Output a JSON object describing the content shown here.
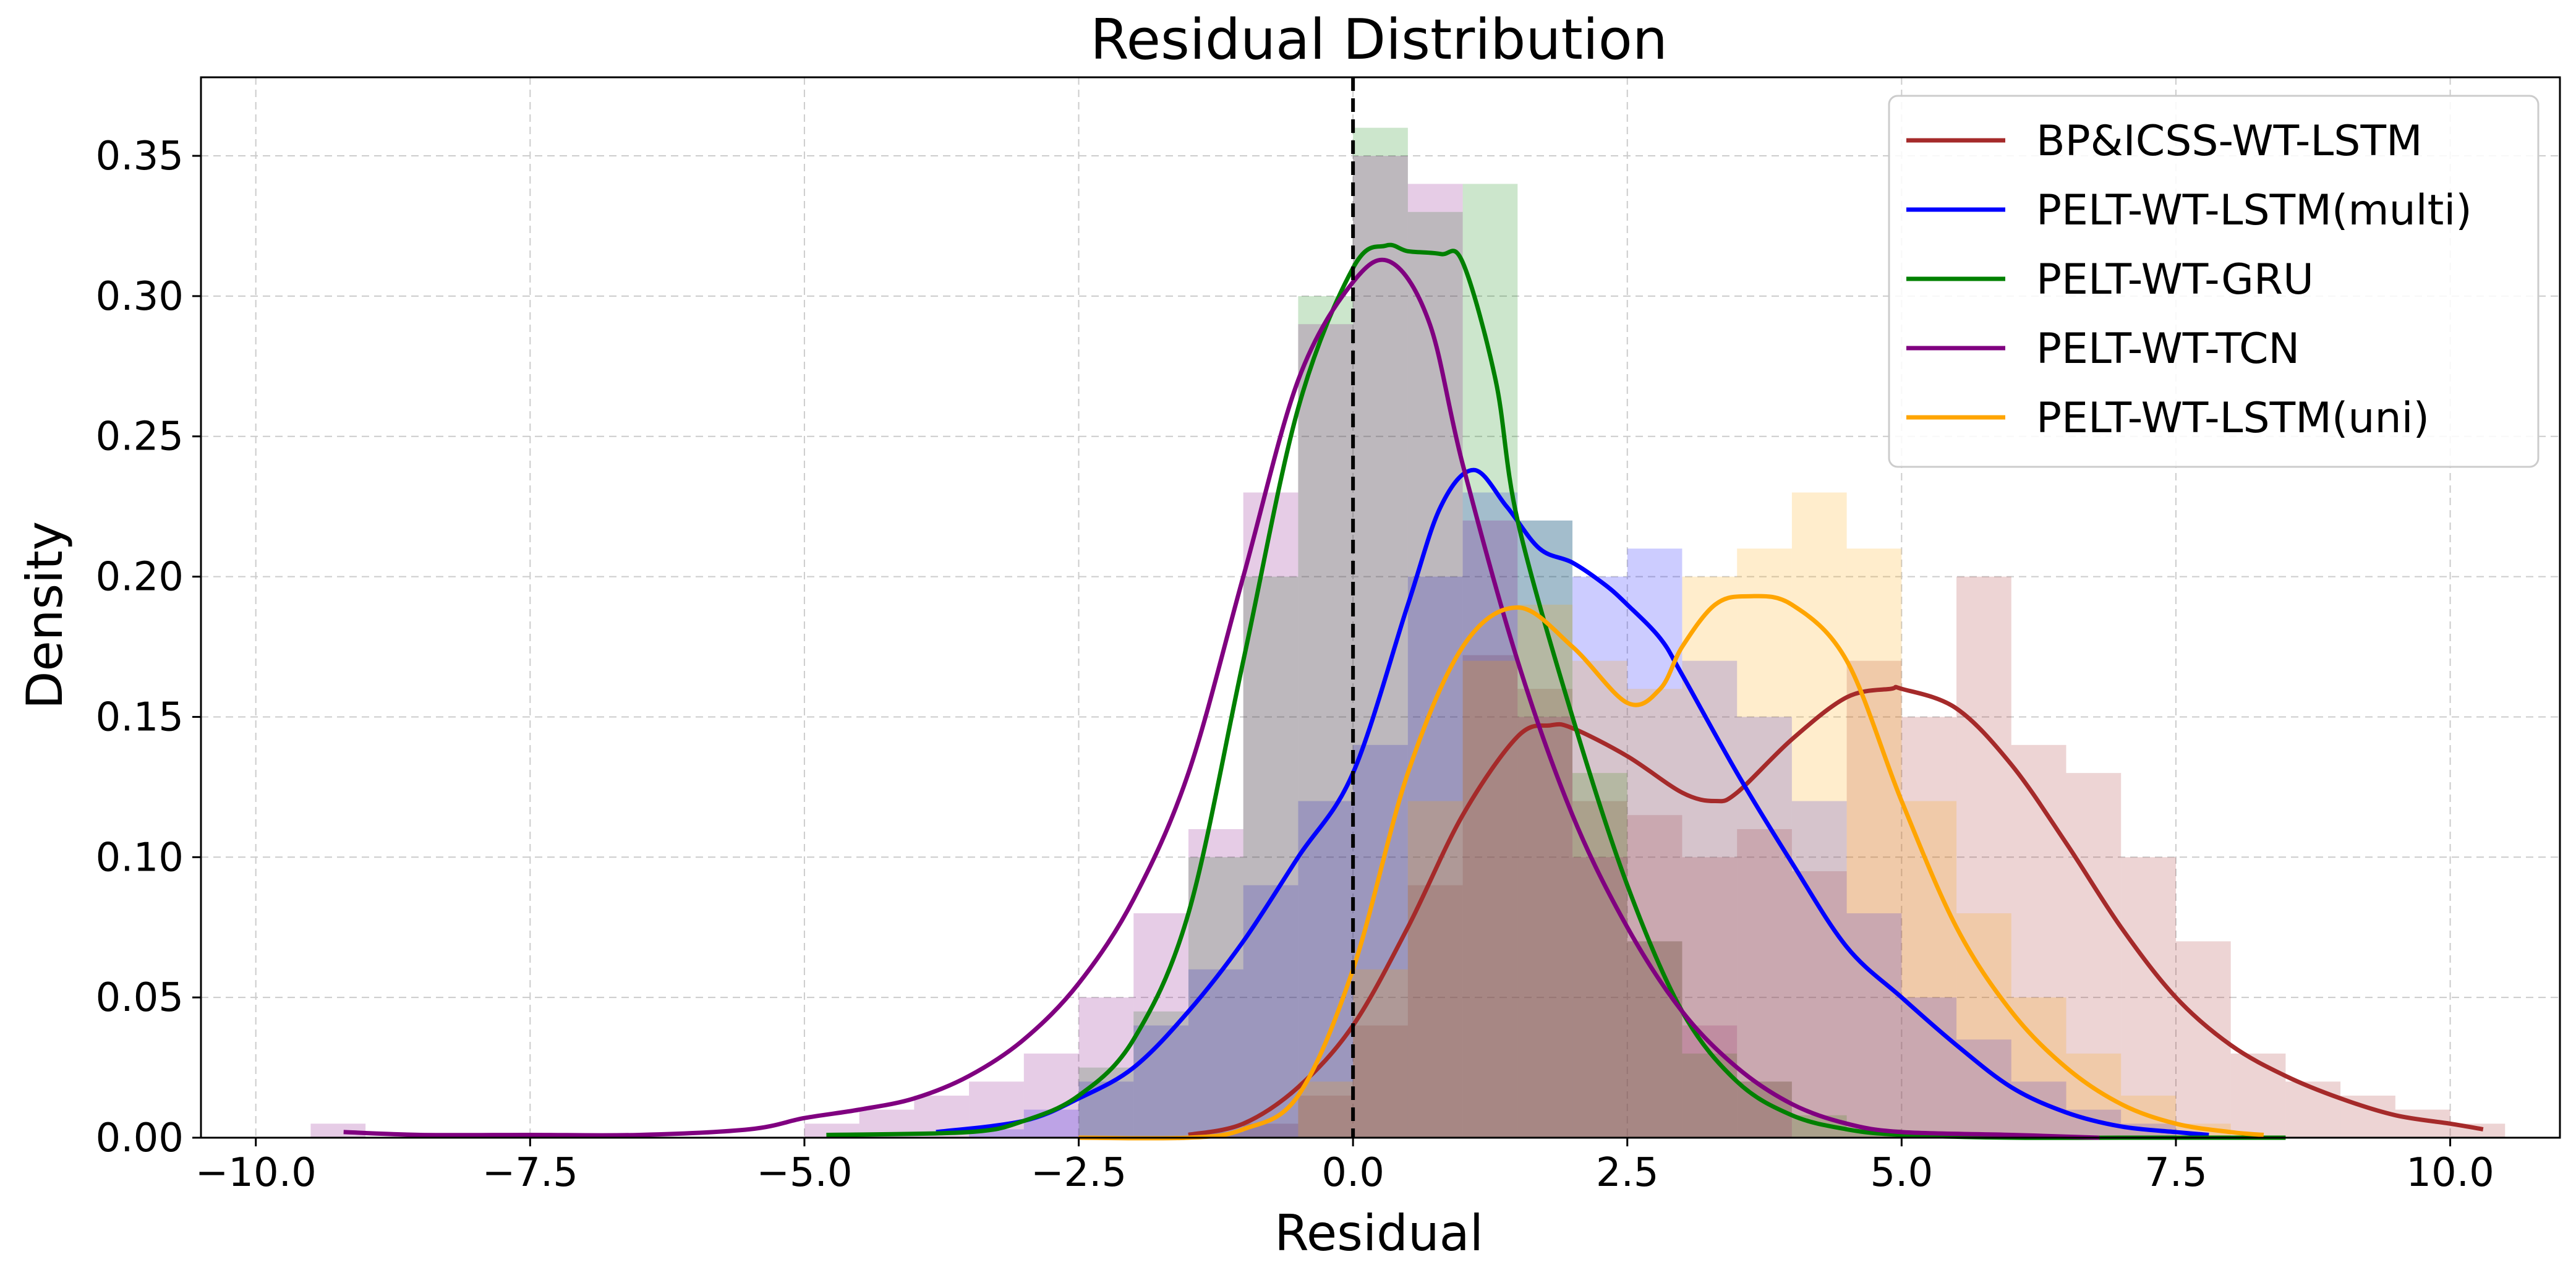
{
  "chart_data": {
    "type": "histogram+kde",
    "title": "Residual Distribution",
    "xlabel": "Residual",
    "ylabel": "Density",
    "xlim": [
      -10.5,
      11.0
    ],
    "ylim": [
      0.0,
      0.378
    ],
    "xticks": [
      -10.0,
      -7.5,
      -5.0,
      -2.5,
      0.0,
      2.5,
      5.0,
      7.5,
      10.0
    ],
    "xtick_labels": [
      "−10.0",
      "−7.5",
      "−5.0",
      "−2.5",
      "0.0",
      "2.5",
      "5.0",
      "7.5",
      "10.0"
    ],
    "yticks": [
      0.0,
      0.05,
      0.1,
      0.15,
      0.2,
      0.25,
      0.3,
      0.35
    ],
    "ytick_labels": [
      "0.00",
      "0.05",
      "0.10",
      "0.15",
      "0.20",
      "0.25",
      "0.30",
      "0.35"
    ],
    "grid": true,
    "legend_position": "top-right",
    "vline": {
      "x": 0.0,
      "style": "dashed",
      "color": "#000000"
    },
    "series": [
      {
        "name": "BP&ICSS-WT-LSTM",
        "color": "#a52a2a",
        "hist": {
          "edges": [
            -1.5,
            -1.0,
            -0.5,
            0.0,
            0.5,
            1.0,
            1.5,
            2.0,
            2.5,
            3.0,
            3.5,
            4.0,
            4.5,
            5.0,
            5.5,
            6.0,
            6.5,
            7.0,
            7.5,
            8.0,
            8.5,
            9.0,
            9.5,
            10.0,
            10.5
          ],
          "densities": [
            0.002,
            0.005,
            0.015,
            0.04,
            0.09,
            0.172,
            0.16,
            0.12,
            0.115,
            0.1,
            0.11,
            0.095,
            0.17,
            0.15,
            0.2,
            0.14,
            0.13,
            0.1,
            0.07,
            0.03,
            0.02,
            0.015,
            0.01,
            0.005
          ]
        },
        "kde": {
          "x": [
            -1.5,
            -1.0,
            -0.5,
            0.0,
            0.5,
            1.0,
            1.5,
            1.8,
            2.0,
            2.5,
            3.0,
            3.3,
            3.5,
            4.0,
            4.5,
            4.9,
            5.0,
            5.5,
            6.0,
            6.5,
            7.0,
            7.5,
            8.0,
            8.5,
            9.0,
            9.5,
            10.0,
            10.3
          ],
          "y": [
            0.001,
            0.005,
            0.018,
            0.04,
            0.075,
            0.115,
            0.143,
            0.147,
            0.146,
            0.136,
            0.123,
            0.12,
            0.123,
            0.142,
            0.157,
            0.16,
            0.16,
            0.153,
            0.133,
            0.105,
            0.075,
            0.05,
            0.033,
            0.022,
            0.014,
            0.008,
            0.005,
            0.003
          ]
        }
      },
      {
        "name": "PELT-WT-LSTM(multi)",
        "color": "#0000ff",
        "hist": {
          "edges": [
            -3.5,
            -3.0,
            -2.5,
            -2.0,
            -1.5,
            -1.0,
            -0.5,
            0.0,
            0.5,
            1.0,
            1.5,
            2.0,
            2.5,
            3.0,
            3.5,
            4.0,
            4.5,
            5.0,
            5.5,
            6.0,
            6.5,
            7.0,
            7.5
          ],
          "densities": [
            0.003,
            0.01,
            0.02,
            0.04,
            0.06,
            0.09,
            0.12,
            0.14,
            0.2,
            0.23,
            0.22,
            0.2,
            0.21,
            0.17,
            0.15,
            0.12,
            0.08,
            0.05,
            0.035,
            0.02,
            0.01,
            0.005
          ]
        },
        "kde": {
          "x": [
            -3.8,
            -3.0,
            -2.5,
            -2.0,
            -1.5,
            -1.0,
            -0.5,
            0.0,
            0.5,
            0.8,
            1.1,
            1.4,
            1.7,
            2.0,
            2.3,
            2.5,
            2.8,
            3.0,
            3.5,
            4.0,
            4.5,
            5.0,
            5.5,
            6.0,
            6.5,
            7.0,
            7.5,
            7.8
          ],
          "y": [
            0.002,
            0.006,
            0.014,
            0.025,
            0.045,
            0.07,
            0.1,
            0.13,
            0.19,
            0.225,
            0.238,
            0.225,
            0.21,
            0.205,
            0.197,
            0.19,
            0.178,
            0.165,
            0.13,
            0.098,
            0.068,
            0.05,
            0.033,
            0.018,
            0.009,
            0.004,
            0.002,
            0.001
          ]
        }
      },
      {
        "name": "PELT-WT-GRU",
        "color": "#008000",
        "hist": {
          "edges": [
            -2.5,
            -2.0,
            -1.5,
            -1.0,
            -0.5,
            0.0,
            0.5,
            1.0,
            1.5,
            2.0,
            2.5,
            3.0,
            3.5,
            4.0,
            4.5,
            5.0
          ],
          "densities": [
            0.025,
            0.045,
            0.1,
            0.2,
            0.3,
            0.36,
            0.33,
            0.34,
            0.22,
            0.13,
            0.07,
            0.03,
            0.02,
            0.008,
            0.003
          ]
        },
        "kde": {
          "x": [
            -4.8,
            -3.5,
            -3.0,
            -2.5,
            -2.0,
            -1.5,
            -1.0,
            -0.5,
            0.0,
            0.3,
            0.5,
            0.8,
            1.0,
            1.3,
            1.5,
            2.0,
            2.5,
            3.0,
            3.5,
            4.0,
            4.5,
            5.0,
            6.0,
            7.0,
            8.5
          ],
          "y": [
            0.001,
            0.002,
            0.006,
            0.015,
            0.035,
            0.08,
            0.17,
            0.26,
            0.31,
            0.318,
            0.316,
            0.315,
            0.312,
            0.27,
            0.22,
            0.15,
            0.09,
            0.045,
            0.02,
            0.008,
            0.003,
            0.001,
            0.0,
            0.0,
            0.0
          ]
        }
      },
      {
        "name": "PELT-WT-TCN",
        "color": "#800080",
        "hist": {
          "edges": [
            -9.5,
            -9.0,
            -5.0,
            -4.5,
            -4.0,
            -3.5,
            -3.0,
            -2.5,
            -2.0,
            -1.5,
            -1.0,
            -0.5,
            0.0,
            0.5,
            1.0,
            1.5,
            2.0,
            2.5,
            3.0,
            3.5,
            4.0
          ],
          "densities": [
            0.005,
            0.0,
            0.005,
            0.01,
            0.015,
            0.02,
            0.03,
            0.05,
            0.08,
            0.11,
            0.23,
            0.29,
            0.35,
            0.34,
            0.22,
            0.15,
            0.1,
            0.07,
            0.04,
            0.02
          ]
        },
        "kde": {
          "x": [
            -9.2,
            -8.5,
            -7.5,
            -6.5,
            -5.5,
            -5.0,
            -4.5,
            -4.0,
            -3.5,
            -3.0,
            -2.5,
            -2.0,
            -1.5,
            -1.0,
            -0.5,
            0.0,
            0.35,
            0.7,
            1.0,
            1.5,
            2.0,
            2.5,
            3.0,
            3.5,
            4.0,
            4.5,
            5.0,
            6.0,
            6.8
          ],
          "y": [
            0.002,
            0.001,
            0.001,
            0.001,
            0.003,
            0.007,
            0.01,
            0.014,
            0.022,
            0.035,
            0.055,
            0.085,
            0.13,
            0.2,
            0.27,
            0.305,
            0.312,
            0.29,
            0.24,
            0.17,
            0.115,
            0.075,
            0.045,
            0.025,
            0.012,
            0.005,
            0.002,
            0.001,
            0.0
          ]
        }
      },
      {
        "name": "PELT-WT-LSTM(uni)",
        "color": "#ffa500",
        "hist": {
          "edges": [
            -0.5,
            0.0,
            0.5,
            1.0,
            1.5,
            2.0,
            2.5,
            3.0,
            3.5,
            4.0,
            4.5,
            5.0,
            5.5,
            6.0,
            6.5,
            7.0,
            7.5,
            8.0
          ],
          "densities": [
            0.02,
            0.06,
            0.12,
            0.17,
            0.19,
            0.17,
            0.16,
            0.2,
            0.21,
            0.23,
            0.21,
            0.12,
            0.08,
            0.05,
            0.03,
            0.015,
            0.005
          ]
        },
        "kde": {
          "x": [
            -2.5,
            -1.5,
            -1.0,
            -0.5,
            0.0,
            0.5,
            1.0,
            1.5,
            2.0,
            2.5,
            2.8,
            3.0,
            3.3,
            3.6,
            4.0,
            4.5,
            5.0,
            5.5,
            6.0,
            6.5,
            7.0,
            7.5,
            8.0,
            8.3
          ],
          "y": [
            0.0,
            0.0,
            0.003,
            0.015,
            0.06,
            0.13,
            0.175,
            0.189,
            0.175,
            0.155,
            0.16,
            0.175,
            0.19,
            0.193,
            0.19,
            0.17,
            0.12,
            0.075,
            0.045,
            0.025,
            0.012,
            0.005,
            0.002,
            0.001
          ]
        }
      }
    ]
  }
}
